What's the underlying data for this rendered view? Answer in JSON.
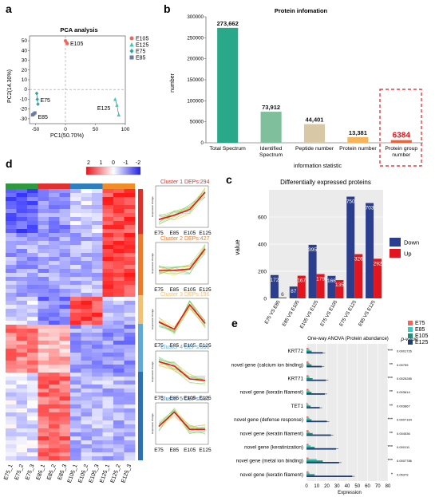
{
  "panel_labels": {
    "a": "a",
    "b": "b",
    "c": "c",
    "d": "d",
    "e": "e"
  },
  "chart_data": [
    {
      "id": "a",
      "type": "scatter",
      "title": "PCA analysis",
      "xlabel": "PC1(50.70%)",
      "ylabel": "PC2(14.30%)",
      "xlim": [
        -60,
        100
      ],
      "ylim": [
        -35,
        55
      ],
      "xticks": [
        -50,
        0,
        50,
        100
      ],
      "yticks": [
        50,
        40,
        30,
        20,
        10,
        0,
        -10,
        -20,
        -30
      ],
      "series": [
        {
          "name": "E105",
          "color": "#f0665a",
          "marker": "circle",
          "x": [
            0,
            2,
            3
          ],
          "y": [
            50,
            48,
            47
          ]
        },
        {
          "name": "E125",
          "color": "#3ec9c0",
          "marker": "triangle",
          "x": [
            83,
            86,
            89
          ],
          "y": [
            -10,
            -16,
            -26
          ]
        },
        {
          "name": "E75",
          "color": "#2aa8a0",
          "marker": "diamond",
          "x": [
            -48,
            -47,
            -46
          ],
          "y": [
            -4,
            -10,
            -15
          ]
        },
        {
          "name": "E85",
          "color": "#6b7aa7",
          "marker": "square",
          "x": [
            -55,
            -53,
            -51
          ],
          "y": [
            -26,
            -25,
            -24
          ]
        }
      ],
      "point_labels": [
        "E105",
        "E75",
        "E85",
        "E125"
      ]
    },
    {
      "id": "b",
      "type": "bar",
      "title": "Protein infomation",
      "xlabel": "information statistic",
      "ylabel": "number",
      "ylim": [
        0,
        300000
      ],
      "yticks": [
        0,
        50000,
        100000,
        150000,
        200000,
        250000,
        300000
      ],
      "categories": [
        "Total Spectrum",
        "Identified Spectrum",
        "Peptide number",
        "Protein number",
        "Protein group number"
      ],
      "values": [
        273662,
        73912,
        44401,
        13381,
        6384
      ],
      "value_labels": [
        "273,662",
        "73,912",
        "44,401",
        "13,381",
        "6384"
      ],
      "colors": [
        "#2aa88a",
        "#7fbf9c",
        "#d9c8a6",
        "#f6b55a",
        "#e8663d"
      ]
    },
    {
      "id": "c",
      "type": "bar",
      "title": "Differentially expressed proteins",
      "ylabel": "value",
      "ylim": [
        0,
        800
      ],
      "yticks": [
        0,
        200,
        400,
        600
      ],
      "categories": [
        "E75 VS E85",
        "E85 VS E105",
        "E105 VS E125",
        "E75 VS E105",
        "E75 VS E125",
        "E85 VS E125"
      ],
      "series": [
        {
          "name": "Down",
          "color": "#2b3d8f",
          "values": [
            172,
            87,
            395,
            166,
            750,
            703
          ]
        },
        {
          "name": "Up",
          "color": "#e3141d",
          "values": [
            6,
            167,
            179,
            135,
            326,
            292
          ]
        }
      ]
    },
    {
      "id": "d",
      "type": "heatmap",
      "columns": [
        "E75_1",
        "E75_2",
        "E75_3",
        "E85_1",
        "E85_2",
        "E85_3",
        "E105_1",
        "E105_2",
        "E105_3",
        "E125_1",
        "E125_2",
        "E125_3"
      ],
      "group_colors": [
        "#2e9a3e",
        "#e03030",
        "#2f7fbf",
        "#f28c28"
      ],
      "colorbar_ticks": [
        2,
        1,
        0,
        -1,
        -2
      ],
      "clusters": [
        {
          "name": "Cluster 1",
          "deps": "DEPs:294",
          "color": "#e0302a",
          "profile": [
            -0.9,
            -0.6,
            -0.2,
            1.0
          ]
        },
        {
          "name": "Cluster 2",
          "deps": "DEPs:427",
          "color": "#f07a2a",
          "profile": [
            -0.5,
            -0.5,
            -0.4,
            1.0
          ]
        },
        {
          "name": "Cluster 3",
          "deps": "DEPs:196",
          "color": "#f3c173",
          "profile": [
            -0.2,
            -0.7,
            1.0,
            -0.3
          ]
        },
        {
          "name": "Cluster 4",
          "deps": "DEPs:330",
          "color": "#5fa8d8",
          "profile": [
            0.7,
            0.4,
            -0.5,
            -0.6
          ]
        },
        {
          "name": "Cluster 5",
          "deps": "DEPs:535",
          "color": "#2f6fb8",
          "profile": [
            -0.2,
            0.8,
            -0.4,
            -0.4
          ]
        }
      ],
      "cluster_xticks": [
        "E75",
        "E85",
        "E105",
        "E125"
      ],
      "cluster_ylabel": "Expression change"
    },
    {
      "id": "e",
      "type": "bar",
      "orientation": "horizontal",
      "title": "One-way ANOVA (Protein abundance)",
      "xlabel": "Expression",
      "xlim": [
        0,
        80
      ],
      "xticks": [
        0,
        10,
        20,
        30,
        40,
        50,
        60,
        70,
        80
      ],
      "pvalue_header": "p-value",
      "categories": [
        "KRT72",
        "novel gene (calcium ion binding)",
        "KRT71",
        "novel gene (keratin filament)",
        "TET1",
        "novel gene (defense response)",
        "novel gene (keratin filament)",
        "novel gene (keratinization)",
        "novel gene (metal ion binding)",
        "novel gene (keratin filament)"
      ],
      "stars": [
        "***",
        "**",
        "***",
        "**",
        "**",
        "***",
        "**",
        "***",
        "***",
        "*"
      ],
      "pvalues": [
        "0.0001726",
        "0.00759",
        "0.0025285",
        "0.003614",
        "0.003867",
        "0.0007164",
        "0.004536",
        "0.000111",
        "0.0007786",
        "0.05379"
      ],
      "series": [
        {
          "name": "E75",
          "color": "#f0665a",
          "values": [
            2,
            2,
            2,
            2,
            1,
            2,
            2,
            2,
            2,
            2
          ]
        },
        {
          "name": "E85",
          "color": "#3ec9c0",
          "values": [
            3,
            3,
            3,
            3,
            2,
            3,
            3,
            4,
            10,
            3
          ]
        },
        {
          "name": "E105",
          "color": "#1f8f7a",
          "values": [
            5,
            5,
            6,
            5,
            4,
            5,
            6,
            8,
            16,
            8
          ]
        },
        {
          "name": "E125",
          "color": "#1f3f73",
          "values": [
            16,
            15,
            19,
            18,
            13,
            20,
            24,
            29,
            32,
            45
          ]
        }
      ]
    }
  ]
}
